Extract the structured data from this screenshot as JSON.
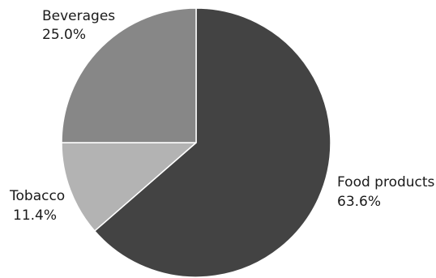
{
  "chart_data": {
    "type": "pie",
    "title": "",
    "start_angle_deg": 0,
    "direction": "clockwise",
    "slices": [
      {
        "label": "Food products",
        "value": 63.6,
        "value_label": "63.6%",
        "color": "#434343"
      },
      {
        "label": "Tobacco",
        "value": 11.4,
        "value_label": "11.4%",
        "color": "#b3b3b3"
      },
      {
        "label": "Beverages",
        "value": 25.0,
        "value_label": "25.0%",
        "color": "#878787"
      }
    ],
    "slice_border_color": "#ffffff"
  }
}
